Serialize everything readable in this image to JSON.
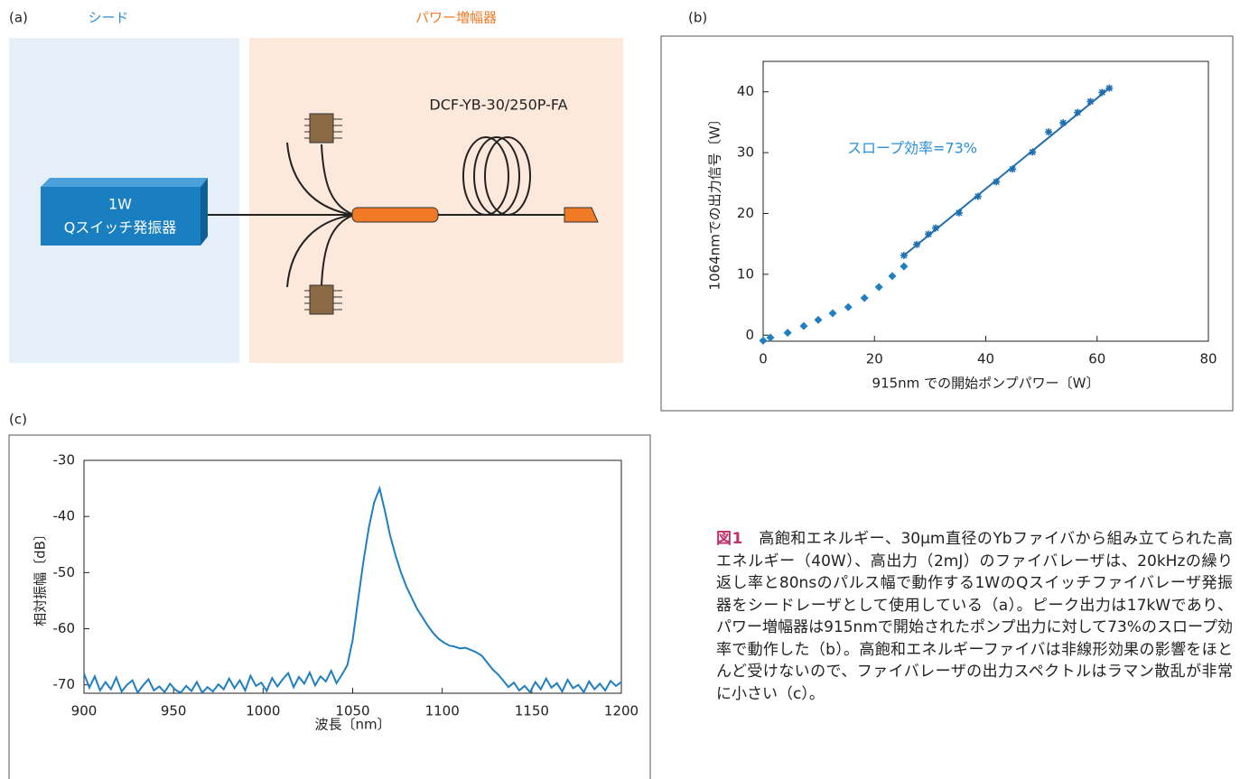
{
  "diagram": {
    "label": "(a)",
    "seed_label": "シード",
    "amp_label": "パワー増幅器",
    "oscillator": [
      "1W",
      "Qスイッチ発振器"
    ],
    "fiber_label": "DCF-YB-30/250P-FA"
  },
  "chart_data": [
    {
      "type": "scatter",
      "panel_label": "(b)",
      "xlabel": "915nm での開始ポンプパワー〔W〕",
      "ylabel": "1064nmでの出力信号〔W〕",
      "annotation": "スロープ効率=73%",
      "xlim": [
        0,
        80
      ],
      "ylim": [
        -1,
        45
      ],
      "xticks": [
        0,
        20,
        40,
        60,
        80
      ],
      "yticks": [
        0,
        10,
        20,
        30,
        40
      ],
      "grid": false,
      "series": [
        {
          "style": "diamond",
          "color": "#1f7fc0",
          "x": [
            0,
            1.3,
            4.4,
            7.3,
            9.9,
            12.5,
            15.3,
            18.2,
            20.8,
            23.2,
            25.3
          ],
          "values": [
            -0.9,
            -0.4,
            0.4,
            1.5,
            2.5,
            3.6,
            4.6,
            6.1,
            7.9,
            9.7,
            11.3
          ]
        },
        {
          "style": "asterisk",
          "color": "#1f6fb0",
          "x": [
            25.3,
            27.6,
            29.7,
            31,
            35.2,
            38.6,
            41.9,
            44.8,
            48.4,
            51.3,
            53.9,
            56.5,
            58.8,
            60.9,
            62.2
          ],
          "values": [
            13.1,
            14.9,
            16.6,
            17.6,
            20.1,
            22.8,
            25.2,
            27.3,
            30.1,
            33.4,
            34.9,
            36.6,
            38.4,
            39.9,
            40.6
          ]
        },
        {
          "style": "line",
          "color": "#1f6fb0",
          "x": [
            25.3,
            62.2
          ],
          "values": [
            13.1,
            40.6
          ]
        }
      ]
    },
    {
      "type": "line",
      "panel_label": "(c)",
      "xlabel": "波長〔nm〕",
      "ylabel": "相対振幅〔dB〕",
      "xlim": [
        900,
        1200
      ],
      "ylim": [
        -71.5,
        -30
      ],
      "xticks": [
        900,
        950,
        1000,
        1050,
        1100,
        1150,
        1200
      ],
      "yticks": [
        -30,
        -40,
        -50,
        -60,
        -70
      ],
      "grid": false,
      "x": [
        900,
        903,
        906,
        909,
        912,
        915,
        918,
        921,
        924,
        927,
        930,
        933,
        936,
        939,
        942,
        945,
        948,
        951,
        954,
        957,
        960,
        963,
        966,
        969,
        972,
        975,
        978,
        981,
        984,
        987,
        990,
        993,
        996,
        999,
        1002,
        1005,
        1008,
        1011,
        1014,
        1017,
        1020,
        1023,
        1026,
        1029,
        1032,
        1035,
        1038,
        1041,
        1044,
        1047,
        1050,
        1053,
        1056,
        1059,
        1062,
        1065,
        1068,
        1071,
        1074,
        1077,
        1080,
        1083,
        1086,
        1089,
        1092,
        1095,
        1098,
        1101,
        1104,
        1107,
        1110,
        1113,
        1116,
        1119,
        1122,
        1125,
        1128,
        1131,
        1134,
        1137,
        1140,
        1143,
        1146,
        1149,
        1152,
        1155,
        1158,
        1161,
        1164,
        1167,
        1170,
        1173,
        1176,
        1179,
        1182,
        1185,
        1188,
        1191,
        1194,
        1197,
        1200
      ],
      "series": [
        {
          "color": "#1f7fc0",
          "values": [
            -68,
            -70.5,
            -68.5,
            -71,
            -69.5,
            -70.8,
            -68.7,
            -71.2,
            -70,
            -69.2,
            -71.4,
            -70.1,
            -69,
            -71,
            -70.3,
            -71.3,
            -69.8,
            -70.9,
            -71.4,
            -70.2,
            -71.1,
            -69.5,
            -71.4,
            -70.4,
            -71.2,
            -69.9,
            -70.8,
            -68.9,
            -70.6,
            -69.2,
            -71,
            -68.4,
            -70.2,
            -69.6,
            -71.1,
            -68.8,
            -70.3,
            -69,
            -67.9,
            -70.4,
            -68.6,
            -69.8,
            -67.8,
            -70.1,
            -68.5,
            -69.4,
            -67.5,
            -69.7,
            -68.2,
            -66.5,
            -62,
            -55,
            -48,
            -42,
            -37.5,
            -35,
            -39,
            -43.5,
            -47,
            -50,
            -52.5,
            -54.5,
            -56.5,
            -58,
            -59.5,
            -60.8,
            -61.8,
            -62.5,
            -63,
            -63.2,
            -63.5,
            -63.4,
            -63.8,
            -64.2,
            -64.8,
            -66,
            -67.2,
            -68.1,
            -69.2,
            -70.4,
            -69.6,
            -71,
            -70.2,
            -71.3,
            -69.5,
            -70.8,
            -68.9,
            -70.5,
            -69.7,
            -71.2,
            -69.1,
            -70.6,
            -70,
            -71.3,
            -69.4,
            -70.8,
            -69.8,
            -71,
            -69.3,
            -70.2,
            -69.5
          ]
        }
      ]
    }
  ],
  "caption": {
    "label": "図1",
    "text": "　高飽和エネルギー、30μm直径のYbファイバから組み立てられた高エネルギー（40W）、高出力（2mJ）のファイバレーザは、20kHzの繰り返し率と80nsのパルス幅で動作する1WのQスイッチファイバレーザ発振器をシードレーザとして使用している（a）。ピーク出力は17kWであり、パワー増幅器は915nmで開始されたポンプ出力に対して73%のスロープ効率で動作した（b）。高飽和エネルギーファイバは非線形効果の影響をほとんど受けないので、ファイバレーザの出力スペクトルはラマン散乱が非常に小さい（c）。"
  }
}
